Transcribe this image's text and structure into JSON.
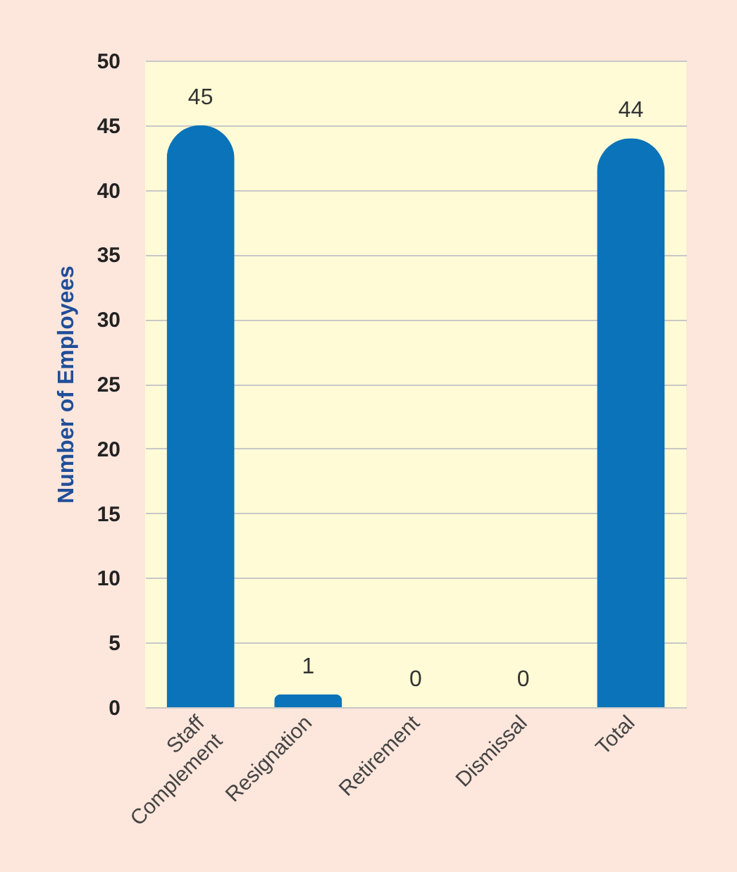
{
  "chart_data": {
    "type": "bar",
    "ylabel": "Number of Employees",
    "categories": [
      "Staff Complement",
      "Resignation",
      "Retirement",
      "Dismissal",
      "Total"
    ],
    "values": [
      45,
      1,
      0,
      0,
      44
    ],
    "color": "#0b73b9",
    "ylim": [
      0,
      50
    ],
    "yticks": [
      0,
      5,
      10,
      15,
      20,
      25,
      30,
      35,
      40,
      45,
      50
    ],
    "grid": "y",
    "data_labels": true
  }
}
